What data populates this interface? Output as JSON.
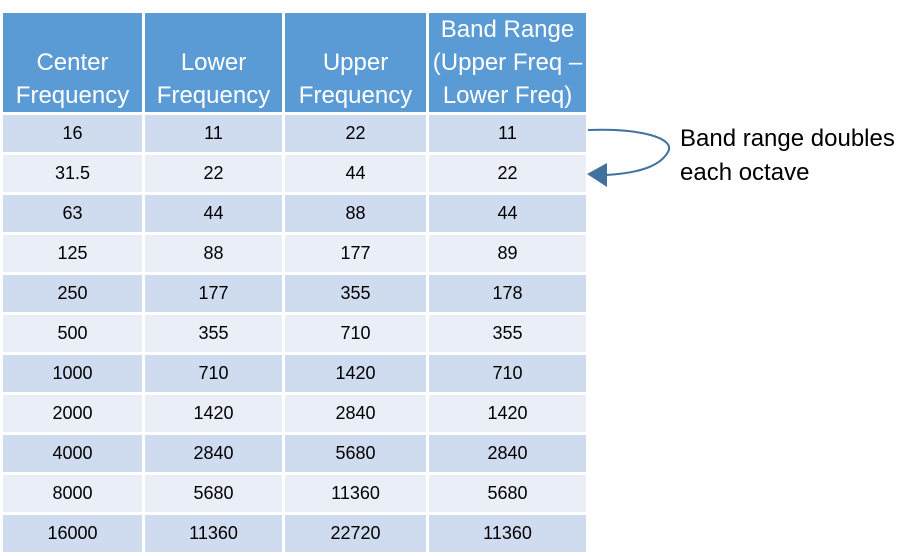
{
  "chart_data": {
    "type": "table",
    "columns": [
      [
        "Center",
        "Frequency"
      ],
      [
        "Lower",
        "Frequency"
      ],
      [
        "Upper",
        "Frequency"
      ],
      [
        "Band Range",
        "(Upper Freq –",
        "Lower Freq)"
      ]
    ],
    "rows": [
      [
        "16",
        "11",
        "22",
        "11"
      ],
      [
        "31.5",
        "22",
        "44",
        "22"
      ],
      [
        "63",
        "44",
        "88",
        "44"
      ],
      [
        "125",
        "88",
        "177",
        "89"
      ],
      [
        "250",
        "177",
        "355",
        "178"
      ],
      [
        "500",
        "355",
        "710",
        "355"
      ],
      [
        "1000",
        "710",
        "1420",
        "710"
      ],
      [
        "2000",
        "1420",
        "2840",
        "1420"
      ],
      [
        "4000",
        "2840",
        "5680",
        "2840"
      ],
      [
        "8000",
        "5680",
        "11360",
        "5680"
      ],
      [
        "16000",
        "11360",
        "22720",
        "11360"
      ]
    ],
    "annotation": [
      "Band range doubles",
      "each octave"
    ]
  },
  "colors": {
    "header_bg": "#5b9bd5",
    "header_text": "#ffffff",
    "row_odd": "#cfdbee",
    "row_even": "#e9eef7",
    "arrow": "#41719c"
  }
}
